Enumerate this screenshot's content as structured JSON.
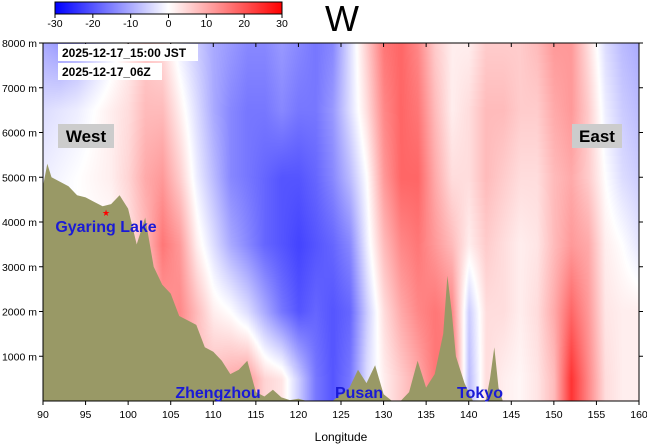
{
  "chart_data": {
    "type": "heatmap",
    "title": "W",
    "xlabel": "Longitude",
    "ylabel": "",
    "xlim": [
      90,
      160
    ],
    "ylim": [
      0,
      8000
    ],
    "x_ticks": [
      90,
      95,
      100,
      105,
      110,
      115,
      120,
      125,
      130,
      135,
      140,
      145,
      150,
      155,
      160
    ],
    "y_ticks": [
      1000,
      2000,
      3000,
      4000,
      5000,
      6000,
      7000,
      8000
    ],
    "y_tick_labels": [
      "1000 m",
      "2000 m",
      "3000 m",
      "4000 m",
      "5000 m",
      "6000 m",
      "7000 m",
      "8000 m"
    ],
    "colorbar": {
      "min": -30,
      "max": 30,
      "ticks": [
        -30,
        -20,
        -10,
        0,
        10,
        20,
        30
      ],
      "colors": [
        "#0000ff",
        "#ffffff",
        "#ff0000"
      ]
    },
    "timestamps": [
      "2025-12-17_15:00 JST",
      "2025-12-17_06Z"
    ],
    "side_labels": {
      "west": "West",
      "east": "East"
    },
    "places": [
      {
        "name": "Gyaring Lake",
        "lon": 97.3,
        "height": 4300
      },
      {
        "name": "Zhengzhou",
        "lon": 113.6
      },
      {
        "name": "Pusan",
        "lon": 129.0
      },
      {
        "name": "Tokyo",
        "lon": 139.7
      }
    ],
    "w_field": {
      "lon": [
        90,
        92,
        94,
        96,
        98,
        100,
        102,
        104,
        106,
        108,
        110,
        112,
        114,
        116,
        118,
        120,
        122,
        124,
        126,
        128,
        130,
        132,
        134,
        136,
        138,
        140,
        142,
        144,
        146,
        148,
        150,
        152,
        154,
        156,
        158,
        160
      ],
      "height": [
        500,
        2000,
        3500,
        5000,
        6500,
        8000
      ],
      "values": [
        [
          0,
          0,
          0,
          0,
          0,
          0,
          3,
          10,
          12,
          7,
          8,
          10,
          12,
          5,
          3,
          -6,
          -16,
          -20,
          -16,
          -4,
          2,
          6,
          10,
          16,
          18,
          -8,
          4,
          2,
          1,
          3,
          8,
          24,
          14,
          4,
          2,
          2
        ],
        [
          0,
          0,
          0,
          0,
          0,
          0,
          4,
          12,
          14,
          8,
          2,
          0,
          -4,
          -10,
          -16,
          -20,
          -18,
          -20,
          -18,
          -6,
          4,
          10,
          14,
          16,
          14,
          -6,
          4,
          4,
          2,
          4,
          10,
          18,
          12,
          3,
          2,
          2
        ],
        [
          0,
          0,
          0,
          0,
          0,
          3,
          8,
          16,
          12,
          2,
          -4,
          -10,
          -14,
          -18,
          -20,
          -22,
          -20,
          -18,
          -14,
          -2,
          8,
          14,
          16,
          12,
          8,
          2,
          6,
          4,
          2,
          3,
          8,
          12,
          10,
          2,
          0,
          -3
        ],
        [
          -2,
          -1,
          0,
          1,
          2,
          5,
          10,
          12,
          6,
          -2,
          -8,
          -14,
          -16,
          -18,
          -20,
          -20,
          -18,
          -14,
          -8,
          0,
          12,
          18,
          18,
          10,
          4,
          4,
          8,
          6,
          4,
          4,
          8,
          10,
          6,
          0,
          -4,
          -6
        ],
        [
          -4,
          -3,
          -2,
          0,
          2,
          4,
          8,
          8,
          2,
          -4,
          -10,
          -14,
          -16,
          -16,
          -14,
          -16,
          -16,
          -12,
          -4,
          4,
          14,
          18,
          16,
          8,
          2,
          4,
          8,
          8,
          6,
          6,
          10,
          12,
          6,
          -2,
          -6,
          -8
        ],
        [
          -10,
          -12,
          -10,
          -6,
          -2,
          2,
          6,
          4,
          -2,
          -6,
          -10,
          -12,
          -14,
          -14,
          -12,
          -14,
          -16,
          -14,
          -4,
          6,
          16,
          18,
          14,
          6,
          2,
          2,
          6,
          6,
          6,
          8,
          12,
          12,
          4,
          -4,
          -8,
          -10
        ]
      ]
    },
    "terrain": {
      "color": "#999966",
      "lon": [
        90,
        90.5,
        91,
        92,
        93,
        94,
        95,
        96,
        97,
        98,
        99,
        100,
        101,
        102,
        103,
        104,
        105,
        106,
        107,
        108,
        109,
        110,
        111,
        112,
        113,
        114,
        115,
        116,
        117,
        118,
        119,
        120,
        121,
        122,
        124,
        126,
        127,
        128,
        129,
        130,
        131,
        132,
        133,
        134,
        135,
        136,
        137,
        137.5,
        138,
        138.5,
        139,
        139.5,
        140,
        140.5,
        141,
        142,
        142.5,
        143,
        143.5,
        144,
        145,
        160
      ],
      "height": [
        4800,
        5300,
        5000,
        4900,
        4800,
        4600,
        4550,
        4450,
        4350,
        4400,
        4600,
        4300,
        3500,
        4100,
        3000,
        2600,
        2400,
        1900,
        1800,
        1700,
        1200,
        1100,
        900,
        600,
        700,
        900,
        200,
        100,
        250,
        80,
        20,
        50,
        0,
        0,
        0,
        300,
        700,
        400,
        800,
        150,
        0,
        0,
        200,
        900,
        300,
        600,
        1500,
        2800,
        2000,
        1000,
        700,
        400,
        200,
        0,
        0,
        0,
        500,
        1200,
        300,
        0,
        0,
        0
      ]
    }
  }
}
